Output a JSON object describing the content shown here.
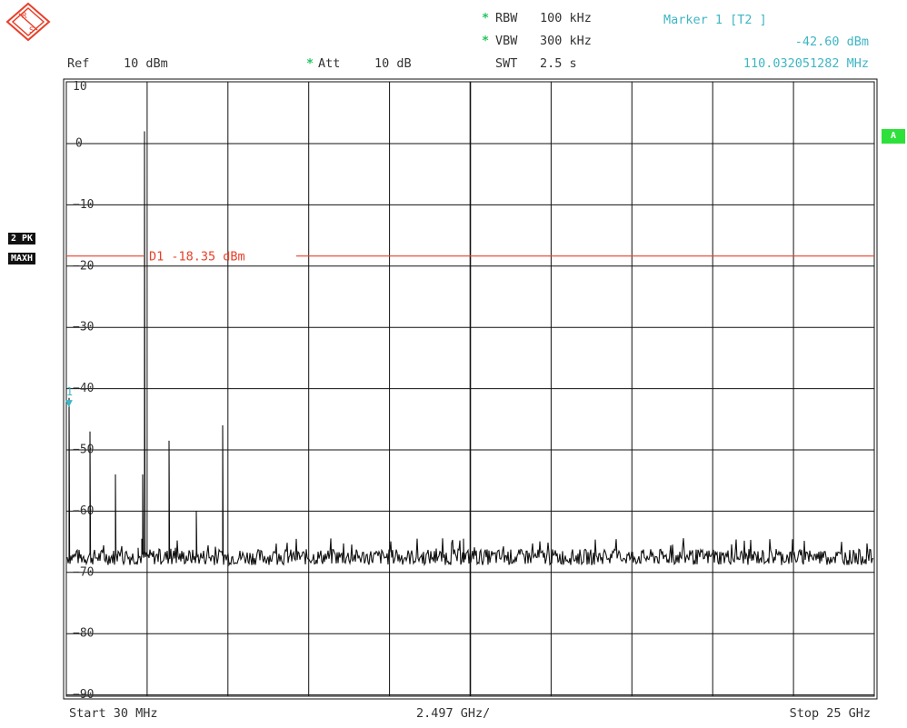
{
  "header": {
    "rbw_label": "RBW",
    "rbw_value": "100 kHz",
    "vbw_label": "VBW",
    "vbw_value": "300 kHz",
    "swt_label": "SWT",
    "swt_value": "2.5 s",
    "ref_label": "Ref",
    "ref_value": "10 dBm",
    "att_label": "Att",
    "att_value": "10 dB",
    "star": "*",
    "marker_title": "Marker 1 [T2 ]",
    "marker_level": "-42.60 dBm",
    "marker_freq": "110.032051282 MHz"
  },
  "side": {
    "trace_badge": "2 PK",
    "detector_badge": "MAXH",
    "a_badge": "A"
  },
  "footer": {
    "start": "Start  30 MHz",
    "span": "2.497 GHz/",
    "stop": "Stop  25 GHz"
  },
  "colors": {
    "trace": "#111111",
    "display_line": "#e8402a",
    "marker": "#3fb6c4",
    "grid": "#111111"
  },
  "chart_data": {
    "type": "line",
    "xlabel": "",
    "ylabel": "",
    "xlim_ghz": [
      0.03,
      25
    ],
    "ylim_dbm": [
      -95,
      13
    ],
    "y_ticks": [
      10,
      0,
      -10,
      -20,
      -30,
      -40,
      -50,
      -60,
      -70,
      -80,
      -90
    ],
    "grid": true,
    "display_line": {
      "label": "D1",
      "value_text": "-18.35 dBm",
      "value": -18.35
    },
    "marker": {
      "label": "1",
      "x_ghz": 0.11,
      "y_dbm": -42.6
    },
    "noise_floor_dbm": -67.5,
    "peaks": [
      {
        "x_ghz": 0.11,
        "y_dbm": -41.5
      },
      {
        "x_ghz": 0.75,
        "y_dbm": -47.0
      },
      {
        "x_ghz": 1.55,
        "y_dbm": -54.0
      },
      {
        "x_ghz": 2.25,
        "y_dbm": -66.0
      },
      {
        "x_ghz": 2.35,
        "y_dbm": -64.5
      },
      {
        "x_ghz": 2.4,
        "y_dbm": -54.0
      },
      {
        "x_ghz": 2.45,
        "y_dbm": 2.0
      },
      {
        "x_ghz": 3.2,
        "y_dbm": -48.5
      },
      {
        "x_ghz": 4.05,
        "y_dbm": -60.0
      },
      {
        "x_ghz": 4.85,
        "y_dbm": -46.0
      },
      {
        "x_ghz": 12.3,
        "y_dbm": -64.5
      }
    ]
  }
}
